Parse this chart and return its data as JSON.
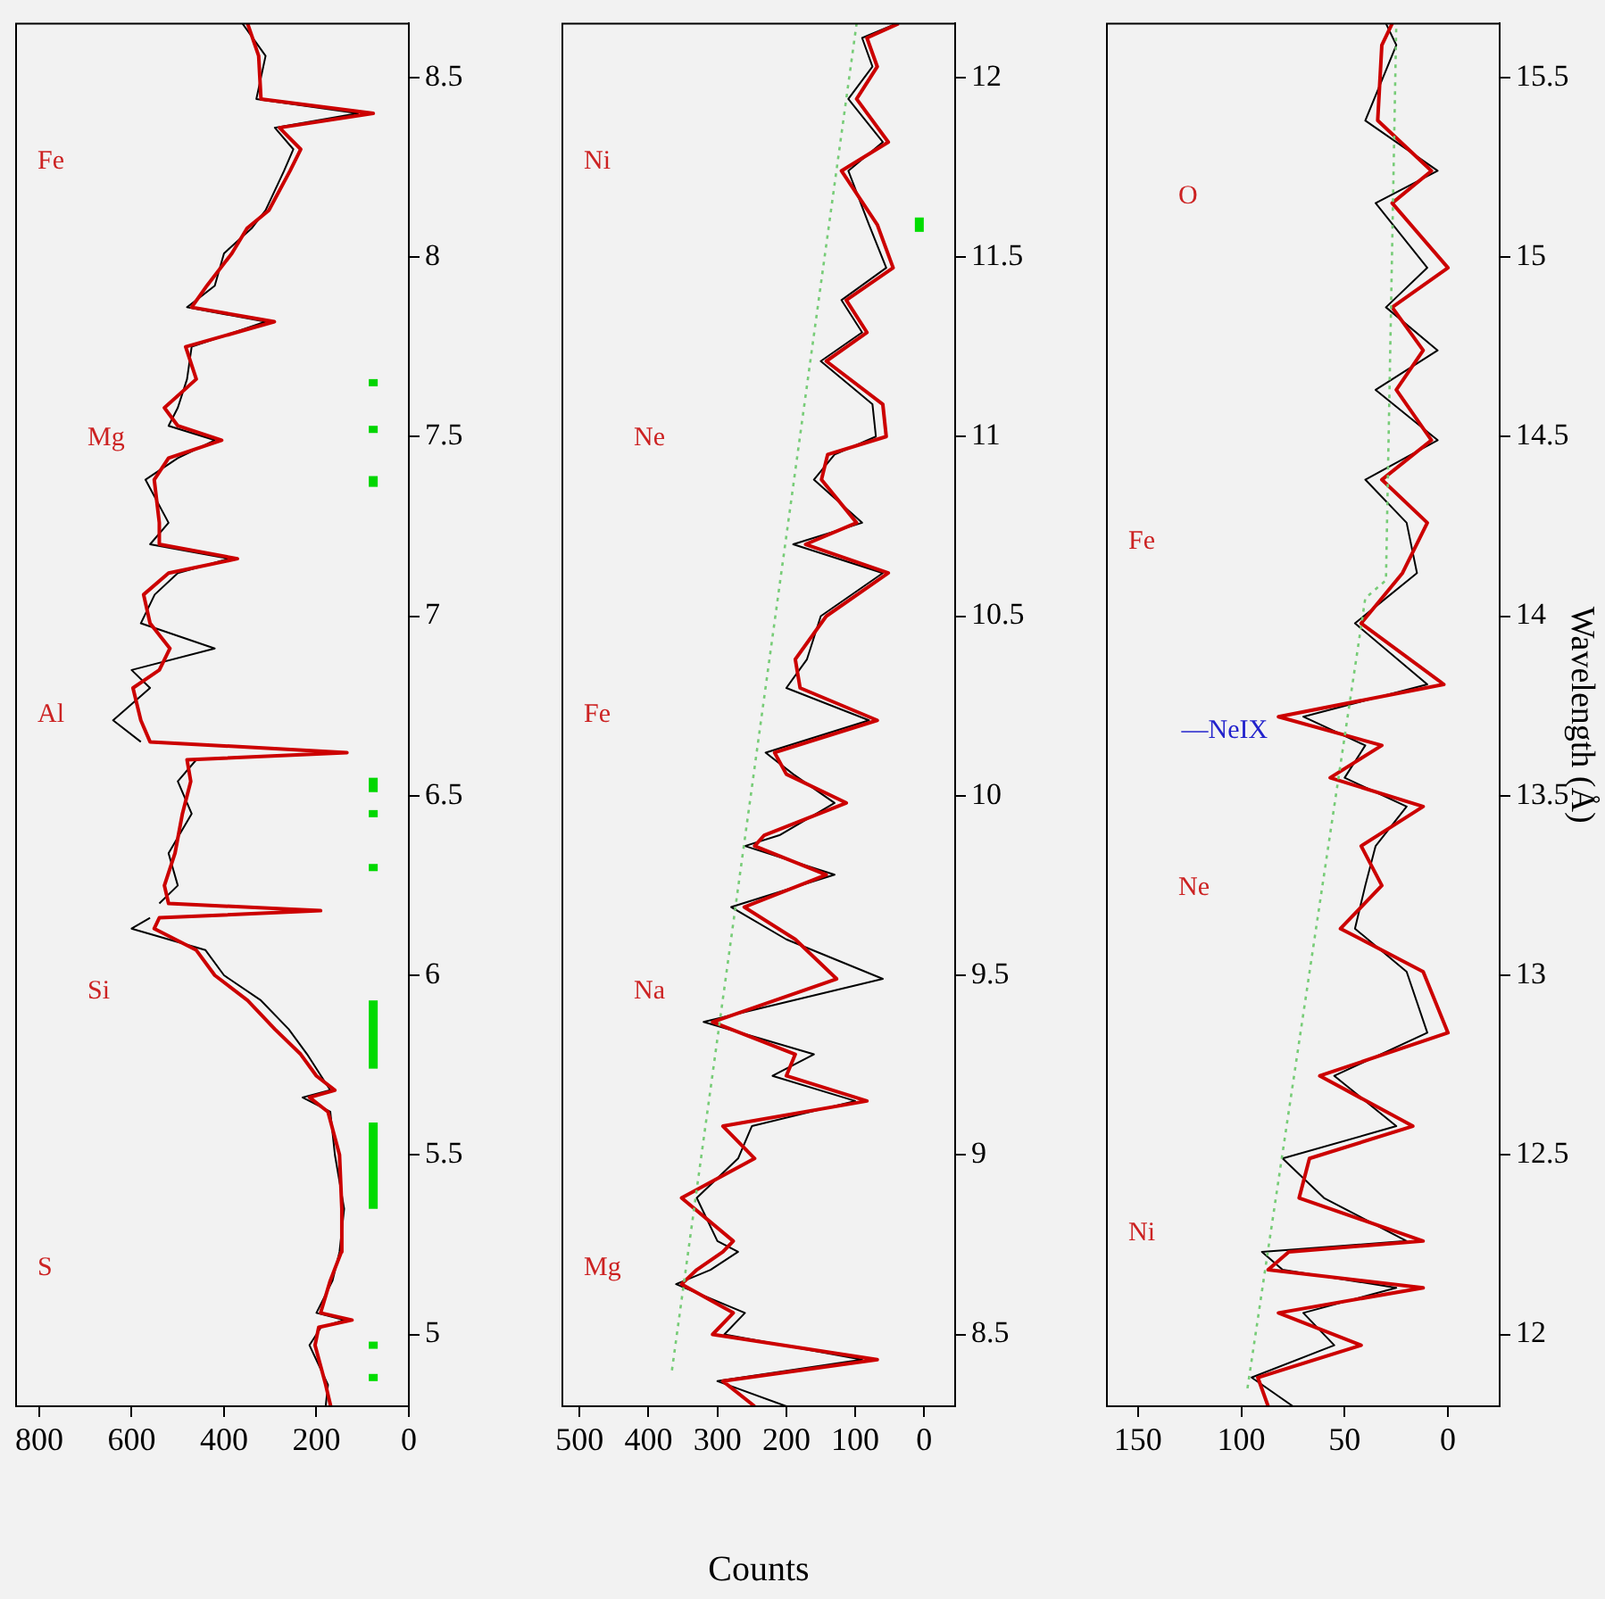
{
  "chart_data": [
    {
      "type": "line",
      "ylim": [
        4.8,
        8.65
      ],
      "xlim": [
        850,
        0
      ],
      "yticks": [
        5,
        5.5,
        6,
        6.5,
        7,
        7.5,
        8,
        8.5
      ],
      "xticks": [
        0,
        200,
        400,
        600,
        800
      ],
      "grid": false,
      "legend": false,
      "marker": "none",
      "annotations": [
        "S",
        "Si",
        "Al",
        "Mg",
        "Fe"
      ],
      "series": [
        {
          "color": "#000000",
          "values": [
            4.8,
            4.86,
            4.97,
            5.02,
            5.04,
            5.06,
            5.15,
            5.23,
            5.35,
            5.5,
            5.62,
            5.66,
            5.68,
            5.72,
            5.78,
            5.85,
            5.93,
            6.0,
            6.07,
            6.13,
            6.16,
            null,
            6.2,
            6.25,
            6.34,
            6.45,
            6.54,
            6.6,
            null,
            6.65,
            6.71,
            6.8,
            6.85,
            6.91,
            6.98,
            7.06,
            7.12,
            7.16,
            7.2,
            7.26,
            7.38,
            7.44,
            7.49,
            7.53,
            7.58,
            7.66,
            7.75,
            7.82,
            7.86,
            7.92,
            8.01,
            8.08,
            8.13,
            8.24,
            8.3,
            8.36,
            8.4,
            8.44,
            8.56,
            8.65
          ],
          "x": [
            180,
            175,
            215,
            190,
            140,
            200,
            165,
            150,
            140,
            160,
            170,
            230,
            170,
            190,
            220,
            260,
            320,
            400,
            440,
            600,
            560,
            null,
            540,
            500,
            520,
            470,
            500,
            460,
            null,
            580,
            640,
            560,
            600,
            420,
            580,
            550,
            500,
            390,
            560,
            520,
            570,
            500,
            420,
            520,
            500,
            480,
            470,
            310,
            480,
            420,
            400,
            340,
            310,
            270,
            250,
            290,
            110,
            330,
            310,
            360
          ]
        },
        {
          "color": "#cc0000",
          "values": [
            4.8,
            4.86,
            4.97,
            5.02,
            5.04,
            5.06,
            5.15,
            5.23,
            5.35,
            5.5,
            5.62,
            5.66,
            5.68,
            5.72,
            5.78,
            5.85,
            5.93,
            6.0,
            6.07,
            6.13,
            6.16,
            6.18,
            6.2,
            6.25,
            6.34,
            6.45,
            6.54,
            6.6,
            6.62,
            6.65,
            6.71,
            6.8,
            6.85,
            6.91,
            6.98,
            7.06,
            7.12,
            7.16,
            7.2,
            7.26,
            7.38,
            7.44,
            7.49,
            7.53,
            7.58,
            7.66,
            7.75,
            7.82,
            7.86,
            7.92,
            8.01,
            8.08,
            8.13,
            8.24,
            8.3,
            8.36,
            8.4,
            8.44,
            8.56,
            8.65
          ],
          "x": [
            169,
            180,
            203,
            195,
            123,
            191,
            170,
            146,
            145,
            150,
            175,
            215,
            160,
            200,
            234,
            290,
            349,
            420,
            460,
            551,
            540,
            191,
            520,
            529,
            506,
            490,
            472,
            480,
            134,
            560,
            580,
            597,
            540,
            517,
            560,
            574,
            520,
            371,
            540,
            540,
            551,
            520,
            405,
            500,
            529,
            460,
            483,
            291,
            470,
            437,
            383,
            350,
            303,
            257,
            234,
            280,
            77,
            320,
            325,
            349
          ]
        },
        {
          "color": "#00dd00",
          "values": [
            4.87,
            4.89
          ],
          "x": [
            77,
            77
          ]
        },
        {
          "color": "#00dc00",
          "values": [
            4.96,
            4.98
          ],
          "x": [
            77,
            77
          ]
        },
        {
          "color": "#00db00",
          "values": [
            5.35,
            5.59
          ],
          "x": [
            77,
            77
          ]
        },
        {
          "color": "#00da00",
          "values": [
            5.74,
            5.93
          ],
          "x": [
            77,
            77
          ]
        },
        {
          "color": "#00d900",
          "values": [
            6.29,
            6.31
          ],
          "x": [
            77,
            77
          ]
        },
        {
          "color": "#00d800",
          "values": [
            6.44,
            6.46
          ],
          "x": [
            77,
            77
          ]
        },
        {
          "color": "#00d700",
          "values": [
            6.51,
            6.55
          ],
          "x": [
            77,
            77
          ]
        },
        {
          "color": "#00d600",
          "values": [
            7.36,
            7.39
          ],
          "x": [
            77,
            77
          ]
        },
        {
          "color": "#00d500",
          "values": [
            7.51,
            7.53
          ],
          "x": [
            77,
            77
          ]
        },
        {
          "color": "#00d400",
          "values": [
            7.64,
            7.66
          ],
          "x": [
            77,
            77
          ]
        }
      ]
    },
    {
      "type": "line",
      "xlabel": "Counts",
      "ylim": [
        8.3,
        12.15
      ],
      "xlim": [
        525,
        -45
      ],
      "yticks": [
        8.5,
        9,
        9.5,
        10,
        10.5,
        11,
        11.5,
        12
      ],
      "xticks": [
        0,
        100,
        200,
        300,
        400,
        500
      ],
      "grid": false,
      "legend": false,
      "marker": "none",
      "annotations": [
        "Mg",
        "Na",
        "Fe",
        "Ne",
        "Ni"
      ],
      "series": [
        {
          "color": "#000000",
          "values": [
            8.3,
            8.37,
            8.43,
            8.5,
            8.56,
            8.64,
            8.68,
            8.73,
            8.76,
            8.88,
            8.99,
            9.08,
            9.15,
            9.22,
            9.28,
            9.37,
            9.49,
            9.6,
            9.69,
            9.78,
            9.86,
            9.89,
            9.98,
            10.06,
            10.12,
            10.21,
            10.3,
            10.38,
            10.5,
            10.62,
            10.7,
            10.76,
            10.88,
            10.95,
            11.0,
            11.09,
            11.21,
            11.29,
            11.38,
            11.47,
            11.59,
            11.74,
            11.82,
            11.94,
            12.03,
            12.11,
            12.15
          ],
          "x": [
            200,
            300,
            90,
            290,
            260,
            360,
            310,
            270,
            300,
            330,
            270,
            250,
            100,
            220,
            160,
            320,
            60,
            200,
            280,
            130,
            260,
            210,
            130,
            190,
            230,
            80,
            200,
            170,
            150,
            60,
            190,
            90,
            160,
            130,
            70,
            75,
            150,
            90,
            120,
            55,
            80,
            110,
            60,
            110,
            75,
            90,
            40
          ]
        },
        {
          "color": "#cc0000",
          "values": [
            8.3,
            8.37,
            8.43,
            8.5,
            8.56,
            8.64,
            8.68,
            8.73,
            8.76,
            8.88,
            8.99,
            9.08,
            9.15,
            9.22,
            9.28,
            9.37,
            9.49,
            9.6,
            9.69,
            9.78,
            9.86,
            9.89,
            9.98,
            10.06,
            10.12,
            10.21,
            10.3,
            10.38,
            10.5,
            10.62,
            10.7,
            10.76,
            10.88,
            10.95,
            11.0,
            11.09,
            11.21,
            11.29,
            11.38,
            11.47,
            11.59,
            11.74,
            11.82,
            11.94,
            12.03,
            12.11,
            12.15
          ],
          "x": [
            246,
            292,
            68,
            307,
            277,
            352,
            330,
            292,
            277,
            352,
            246,
            292,
            83,
            200,
            187,
            307,
            127,
            187,
            261,
            142,
            246,
            232,
            113,
            200,
            217,
            68,
            180,
            187,
            142,
            52,
            172,
            98,
            149,
            140,
            55,
            60,
            142,
            83,
            113,
            45,
            68,
            120,
            52,
            98,
            68,
            83,
            37
          ]
        },
        {
          "color": "#77cc77",
          "line_style": "dotted",
          "values": [
            8.4,
            12.15
          ],
          "x": [
            366,
            98
          ]
        },
        {
          "color": "#00dd00",
          "values": [
            11.57,
            11.61
          ],
          "x": [
            7,
            7
          ]
        }
      ]
    },
    {
      "type": "line",
      "ylabel": "Wavelength (Å)",
      "ylim": [
        11.8,
        15.65
      ],
      "xlim": [
        165,
        -25
      ],
      "yticks": [
        12,
        12.5,
        13,
        13.5,
        14,
        14.5,
        15,
        15.5
      ],
      "xticks": [
        0,
        50,
        100,
        150
      ],
      "grid": false,
      "legend": false,
      "marker": "none",
      "annotations": [
        "Ni",
        "Ne",
        "Fe",
        "O",
        {
          "text": "—NeIX",
          "y": 13.72,
          "x": 82
        }
      ],
      "series": [
        {
          "color": "#000000",
          "values": [
            11.8,
            11.88,
            11.97,
            12.06,
            12.13,
            12.18,
            12.23,
            12.26,
            12.38,
            12.49,
            12.58,
            12.72,
            12.84,
            13.01,
            13.13,
            13.25,
            13.36,
            13.47,
            13.55,
            13.64,
            13.72,
            13.81,
            13.98,
            14.12,
            14.26,
            14.38,
            14.49,
            14.63,
            14.74,
            14.86,
            14.97,
            15.15,
            15.24,
            15.38,
            15.59,
            15.65
          ],
          "x": [
            75,
            95,
            55,
            70,
            25,
            80,
            90,
            20,
            60,
            80,
            25,
            55,
            10,
            20,
            45,
            40,
            35,
            20,
            50,
            40,
            70,
            10,
            45,
            15,
            20,
            40,
            5,
            35,
            5,
            30,
            10,
            35,
            5,
            40,
            25,
            30
          ]
        },
        {
          "color": "#cc0000",
          "values": [
            11.8,
            11.88,
            11.97,
            12.06,
            12.13,
            12.18,
            12.23,
            12.26,
            12.38,
            12.49,
            12.58,
            12.72,
            12.84,
            13.01,
            13.13,
            13.25,
            13.36,
            13.47,
            13.55,
            13.64,
            13.72,
            13.81,
            13.98,
            14.12,
            14.26,
            14.38,
            14.49,
            14.63,
            14.74,
            14.86,
            14.97,
            15.15,
            15.24,
            15.38,
            15.59,
            15.65
          ],
          "x": [
            87,
            92,
            42,
            82,
            12,
            87,
            77,
            12,
            72,
            67,
            17,
            62,
            0,
            12,
            52,
            32,
            42,
            12,
            57,
            32,
            82,
            2,
            42,
            22,
            10,
            32,
            8,
            25,
            12,
            27,
            0,
            27,
            8,
            34,
            32,
            27
          ]
        },
        {
          "color": "#77cc77",
          "line_style": "dotted",
          "values": [
            11.85,
            14.05,
            14.1,
            15.65
          ],
          "x": [
            97,
            40,
            30,
            25
          ]
        }
      ]
    }
  ]
}
